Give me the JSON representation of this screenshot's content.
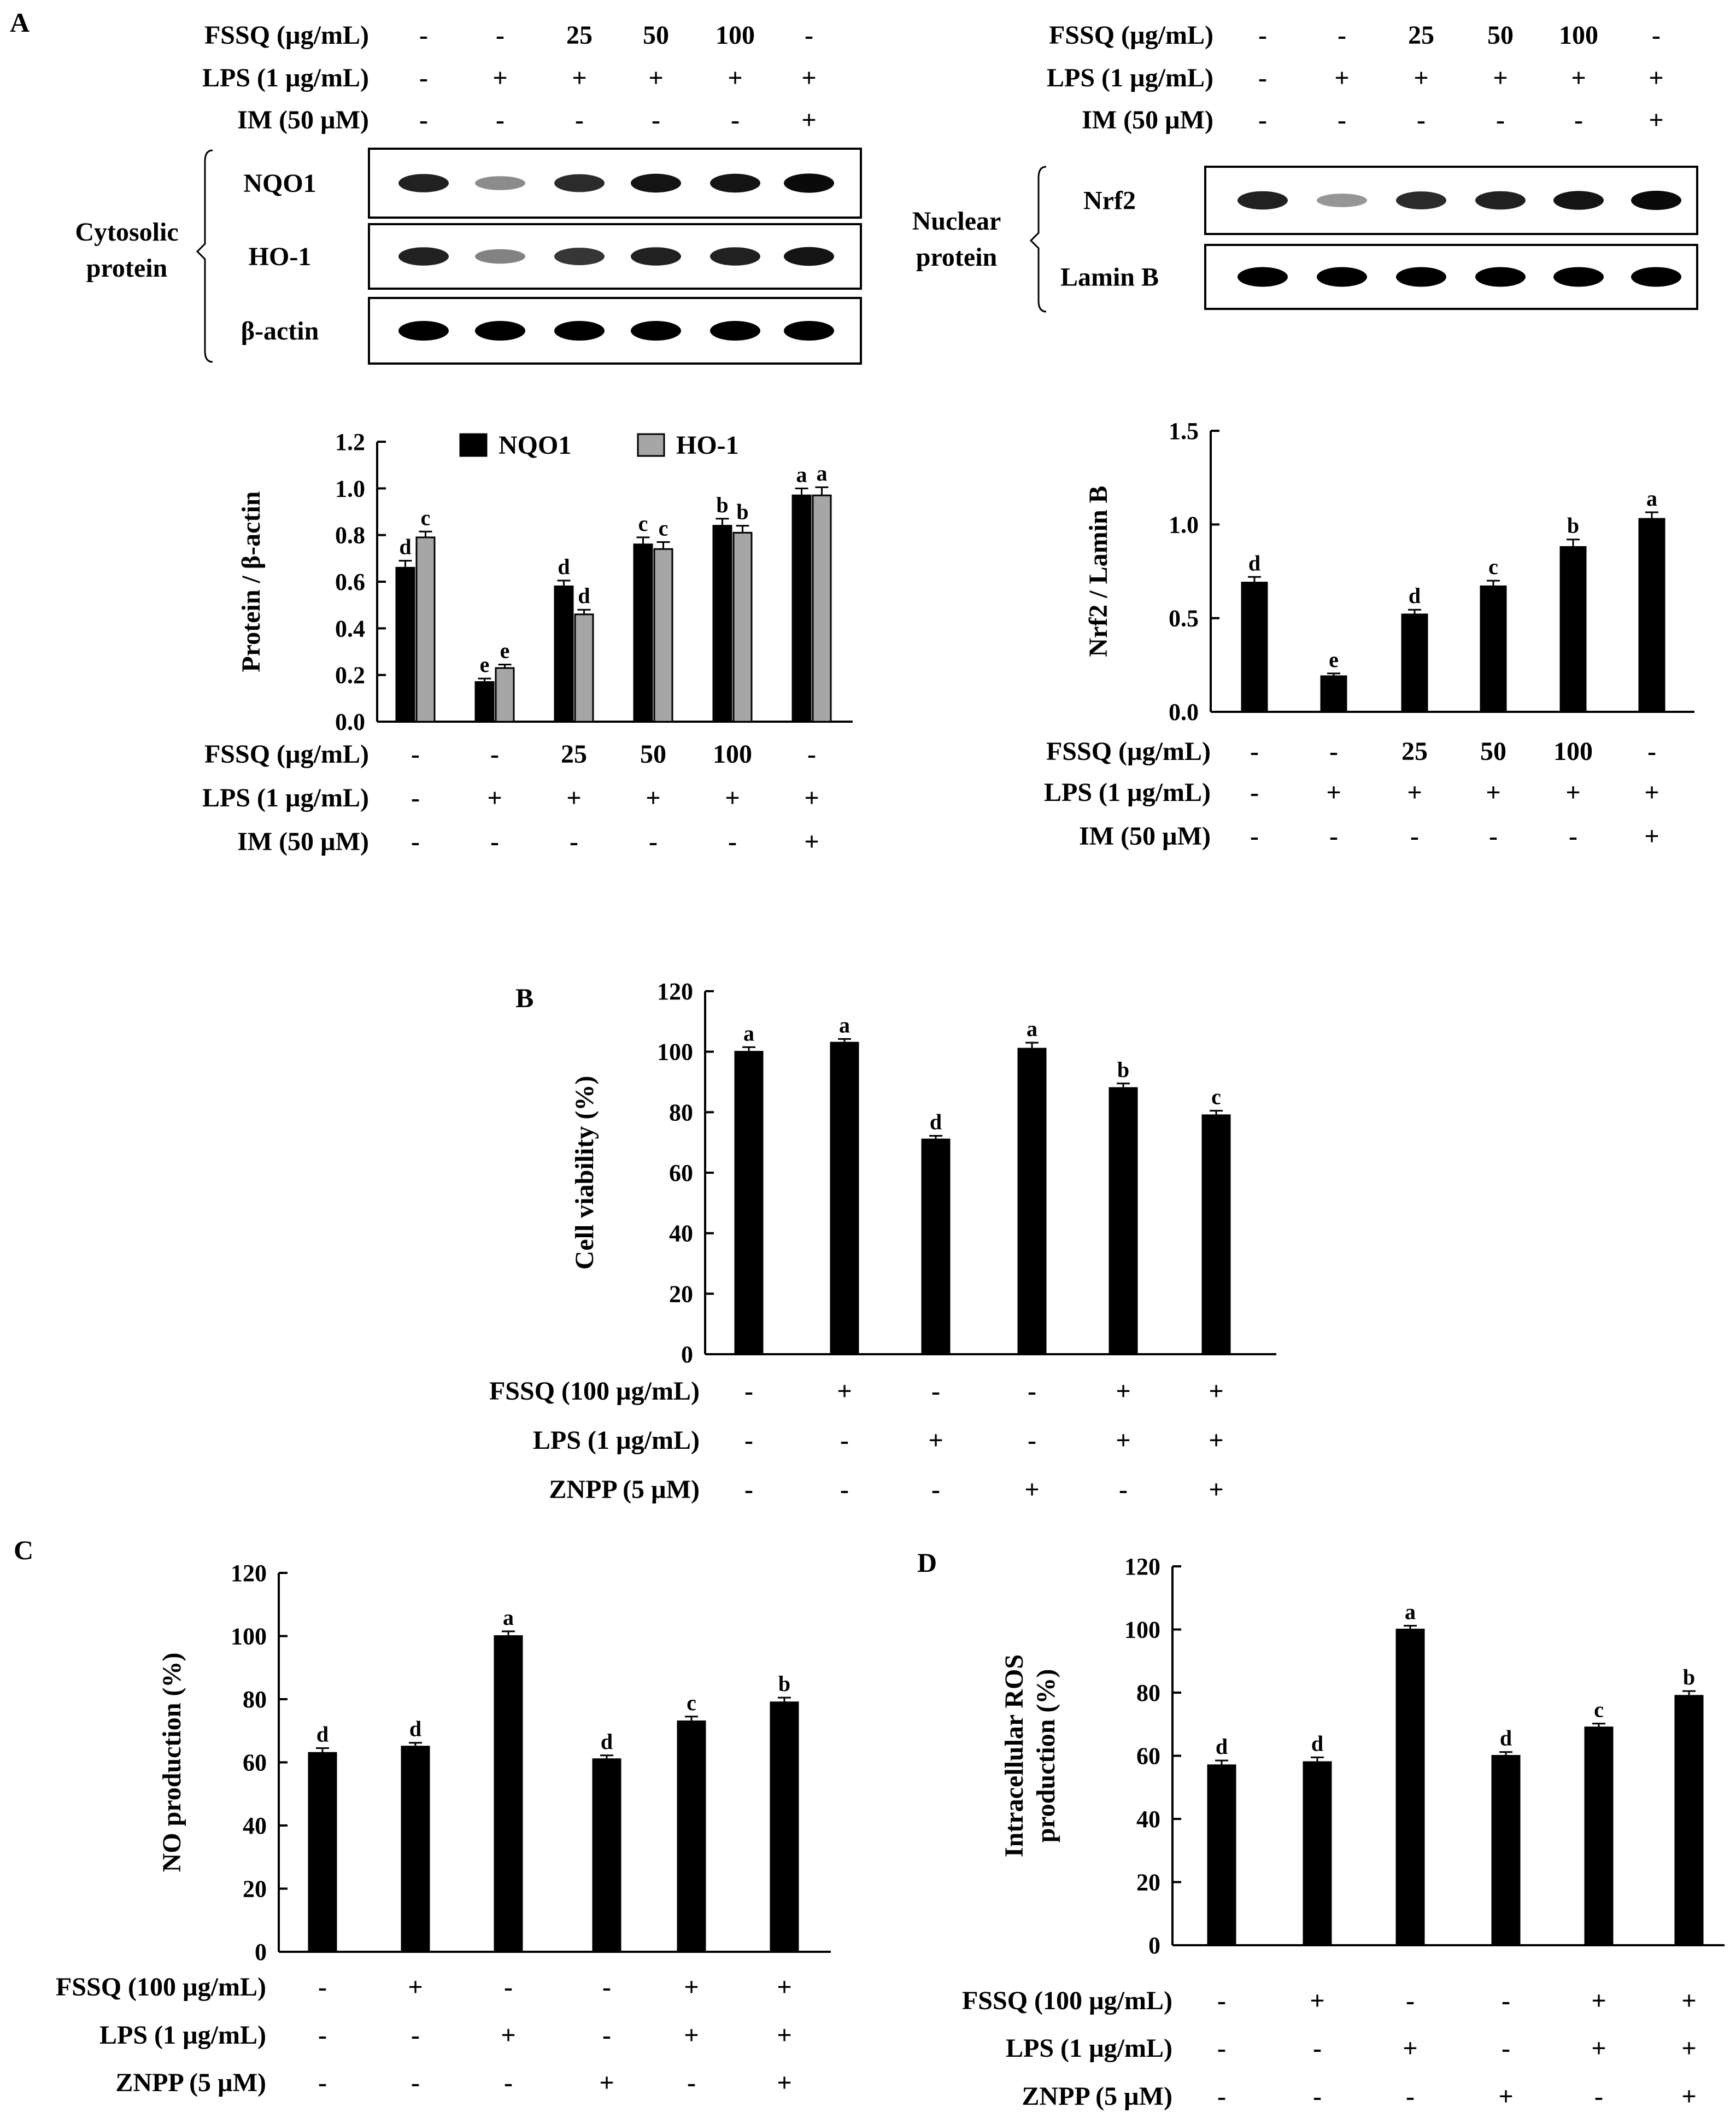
{
  "panels": {
    "A": "A",
    "B": "B",
    "C": "C",
    "D": "D"
  },
  "blot_left": {
    "treatments": [
      {
        "label": "FSSQ  (µg/mL)",
        "values": [
          "-",
          "-",
          "25",
          "50",
          "100",
          "-"
        ]
      },
      {
        "label": "LPS (1 µg/mL)",
        "values": [
          "-",
          "+",
          "+",
          "+",
          "+",
          "+"
        ]
      },
      {
        "label": "IM (50 µM)",
        "values": [
          "-",
          "-",
          "-",
          "-",
          "-",
          "+"
        ]
      }
    ],
    "group_label": [
      "Cytosolic",
      "protein"
    ],
    "rows": [
      "NQO1",
      "HO-1",
      "β-actin"
    ],
    "band_intensity": [
      [
        0.85,
        0.35,
        0.8,
        0.9,
        0.9,
        0.95
      ],
      [
        0.85,
        0.4,
        0.75,
        0.85,
        0.85,
        0.9
      ],
      [
        1,
        1,
        1,
        1,
        1,
        1
      ]
    ]
  },
  "blot_right": {
    "treatments": [
      {
        "label": "FSSQ  (µg/mL)",
        "values": [
          "-",
          "-",
          "25",
          "50",
          "100",
          "-"
        ]
      },
      {
        "label": "LPS (1 µg/mL)",
        "values": [
          "-",
          "+",
          "+",
          "+",
          "+",
          "+"
        ]
      },
      {
        "label": "IM (50 µM)",
        "values": [
          "-",
          "-",
          "-",
          "-",
          "-",
          "+"
        ]
      }
    ],
    "group_label": [
      "Nuclear",
      "protein"
    ],
    "rows": [
      "Nrf2",
      "Lamin B"
    ],
    "band_intensity": [
      [
        0.85,
        0.3,
        0.8,
        0.85,
        0.9,
        0.95
      ],
      [
        1,
        1,
        1,
        1,
        1,
        1
      ]
    ]
  },
  "chart_data": [
    {
      "id": "A-left",
      "type": "bar",
      "ylabel": "Protein / β-actin",
      "ylim": [
        0,
        1.2
      ],
      "yticks": [
        "0.0",
        "0.2",
        "0.4",
        "0.6",
        "0.8",
        "1.0",
        "1.2"
      ],
      "legend": [
        "NQO1",
        "HO-1"
      ],
      "series": [
        {
          "name": "NQO1",
          "color": "#000000",
          "values": [
            0.66,
            0.17,
            0.58,
            0.76,
            0.84,
            0.97
          ],
          "errors": [
            0.03,
            0.015,
            0.025,
            0.03,
            0.03,
            0.03
          ],
          "letters": [
            "d",
            "e",
            "d",
            "c",
            "b",
            "a"
          ]
        },
        {
          "name": "HO-1",
          "color": "#a6a6a6",
          "values": [
            0.79,
            0.23,
            0.46,
            0.74,
            0.81,
            0.97
          ],
          "errors": [
            0.025,
            0.015,
            0.02,
            0.03,
            0.03,
            0.035
          ],
          "letters": [
            "c",
            "e",
            "d",
            "c",
            "b",
            "a"
          ]
        }
      ],
      "treatments": [
        {
          "label": "FSSQ  (µg/mL)",
          "values": [
            "-",
            "-",
            "25",
            "50",
            "100",
            "-"
          ]
        },
        {
          "label": "LPS (1 µg/mL)",
          "values": [
            "-",
            "+",
            "+",
            "+",
            "+",
            "+"
          ]
        },
        {
          "label": "IM (50 µM)",
          "values": [
            "-",
            "-",
            "-",
            "-",
            "-",
            "+"
          ]
        }
      ]
    },
    {
      "id": "A-right",
      "type": "bar",
      "ylabel": "Nrf2 / Lamin B",
      "ylim": [
        0,
        1.5
      ],
      "yticks": [
        "0.0",
        "0.5",
        "1.0",
        "1.5"
      ],
      "series": [
        {
          "name": "Nrf2",
          "color": "#000000",
          "values": [
            0.69,
            0.19,
            0.52,
            0.67,
            0.88,
            1.03
          ],
          "errors": [
            0.03,
            0.015,
            0.025,
            0.03,
            0.04,
            0.035
          ],
          "letters": [
            "d",
            "e",
            "d",
            "c",
            "b",
            "a"
          ]
        }
      ],
      "treatments": [
        {
          "label": "FSSQ  (µg/mL)",
          "values": [
            "-",
            "-",
            "25",
            "50",
            "100",
            "-"
          ]
        },
        {
          "label": "LPS (1 µg/mL)",
          "values": [
            "-",
            "+",
            "+",
            "+",
            "+",
            "+"
          ]
        },
        {
          "label": "IM (50 µM)",
          "values": [
            "-",
            "-",
            "-",
            "-",
            "-",
            "+"
          ]
        }
      ]
    },
    {
      "id": "B",
      "type": "bar",
      "ylabel": "Cell viability (%)",
      "ylim": [
        0,
        120
      ],
      "yticks": [
        "0",
        "20",
        "40",
        "60",
        "80",
        "100",
        "120"
      ],
      "series": [
        {
          "name": "Cell viability",
          "color": "#000000",
          "values": [
            100,
            103,
            71,
            101,
            88,
            79
          ],
          "errors": [
            1.5,
            1.2,
            1.2,
            2,
            1.5,
            1.5
          ],
          "letters": [
            "a",
            "a",
            "d",
            "a",
            "b",
            "c"
          ]
        }
      ],
      "treatments": [
        {
          "label": "FSSQ (100 µg/mL)",
          "values": [
            "-",
            "+",
            "-",
            "-",
            "+",
            "+"
          ]
        },
        {
          "label": "LPS (1 µg/mL)",
          "values": [
            "-",
            "-",
            "+",
            "-",
            "+",
            "+"
          ]
        },
        {
          "label": "ZNPP (5 µM)",
          "values": [
            "-",
            "-",
            "-",
            "+",
            "-",
            "+"
          ]
        }
      ]
    },
    {
      "id": "C",
      "type": "bar",
      "ylabel": "NO production (%)",
      "ylim": [
        0,
        120
      ],
      "yticks": [
        "0",
        "20",
        "40",
        "60",
        "80",
        "100",
        "120"
      ],
      "series": [
        {
          "name": "NO production",
          "color": "#000000",
          "values": [
            63,
            65,
            100,
            61,
            73,
            79
          ],
          "errors": [
            1.5,
            1.2,
            1.5,
            1.2,
            1.5,
            1.5
          ],
          "letters": [
            "d",
            "d",
            "a",
            "d",
            "c",
            "b"
          ]
        }
      ],
      "treatments": [
        {
          "label": "FSSQ (100 µg/mL)",
          "values": [
            "-",
            "+",
            "-",
            "-",
            "+",
            "+"
          ]
        },
        {
          "label": "LPS (1 µg/mL)",
          "values": [
            "-",
            "-",
            "+",
            "-",
            "+",
            "+"
          ]
        },
        {
          "label": "ZNPP (5 µM)",
          "values": [
            "-",
            "-",
            "-",
            "+",
            "-",
            "+"
          ]
        }
      ]
    },
    {
      "id": "D",
      "type": "bar",
      "ylabel": [
        "Intracellular ROS",
        "production (%)"
      ],
      "ylim": [
        0,
        120
      ],
      "yticks": [
        "0",
        "20",
        "40",
        "60",
        "80",
        "100",
        "120"
      ],
      "series": [
        {
          "name": "Intracellular ROS",
          "color": "#000000",
          "values": [
            57,
            58,
            100,
            60,
            69,
            79
          ],
          "errors": [
            1.5,
            1.5,
            1.2,
            1.2,
            1.2,
            1.5
          ],
          "letters": [
            "d",
            "d",
            "a",
            "d",
            "c",
            "b"
          ]
        }
      ],
      "treatments": [
        {
          "label": "FSSQ (100 µg/mL)",
          "values": [
            "-",
            "+",
            "-",
            "-",
            "+",
            "+"
          ]
        },
        {
          "label": "LPS (1 µg/mL)",
          "values": [
            "-",
            "-",
            "+",
            "-",
            "+",
            "+"
          ]
        },
        {
          "label": "ZNPP (5 µM)",
          "values": [
            "-",
            "-",
            "-",
            "+",
            "-",
            "+"
          ]
        }
      ]
    }
  ]
}
